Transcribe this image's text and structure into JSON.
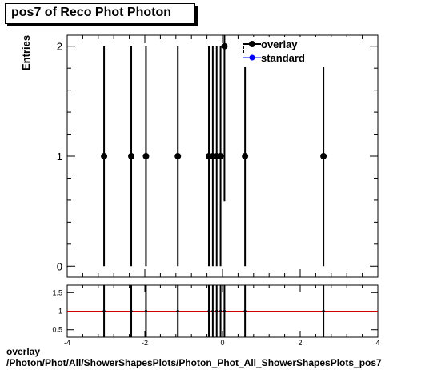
{
  "title": "pos7 of Reco Phot Photon",
  "footer": {
    "line1": "overlay",
    "line2": "/Photon/Phot/All/ShowerShapesPlots/Photon_Phot_All_ShowerShapesPlots_pos7"
  },
  "colors": {
    "overlay": "#000000",
    "standard": "#0000ff",
    "ratio_line": "#cc0000"
  },
  "chart_data": [
    {
      "type": "scatter",
      "ylabel": "Entries",
      "xlim": [
        -4,
        4
      ],
      "ylim": [
        -0.1,
        2.1
      ],
      "y_ticks": [
        0,
        1,
        2
      ],
      "legend_placement": "top-right",
      "series": [
        {
          "name": "overlay",
          "points": [
            {
              "x": -3.05,
              "y": 1,
              "err": 1
            },
            {
              "x": -2.35,
              "y": 1,
              "err": 1
            },
            {
              "x": -1.97,
              "y": 1,
              "err": 1
            },
            {
              "x": -1.15,
              "y": 1,
              "err": 1
            },
            {
              "x": -0.35,
              "y": 1,
              "err": 1
            },
            {
              "x": -0.25,
              "y": 1,
              "err": 1
            },
            {
              "x": -0.15,
              "y": 1,
              "err": 1
            },
            {
              "x": -0.05,
              "y": 1,
              "err": 1
            },
            {
              "x": 0.05,
              "y": 2,
              "err": 1.41
            },
            {
              "x": 0.58,
              "y": 1,
              "err": 1
            },
            {
              "x": 2.6,
              "y": 1,
              "err": 1
            }
          ]
        },
        {
          "name": "standard",
          "points": []
        }
      ]
    },
    {
      "type": "scatter",
      "xlim": [
        -4,
        4
      ],
      "ylim": [
        0.3,
        1.7
      ],
      "x_ticks": [
        -4,
        -2,
        0,
        2,
        4
      ],
      "y_ticks": [
        0.5,
        1,
        1.5
      ],
      "reference_line": 1,
      "points_x": [
        -3.05,
        -2.35,
        -1.97,
        -1.15,
        -0.35,
        -0.25,
        -0.15,
        -0.05,
        0.05,
        0.58,
        2.6
      ],
      "points_y": [
        1,
        1,
        1,
        1,
        1,
        1,
        1,
        1,
        1,
        1,
        1
      ]
    }
  ]
}
